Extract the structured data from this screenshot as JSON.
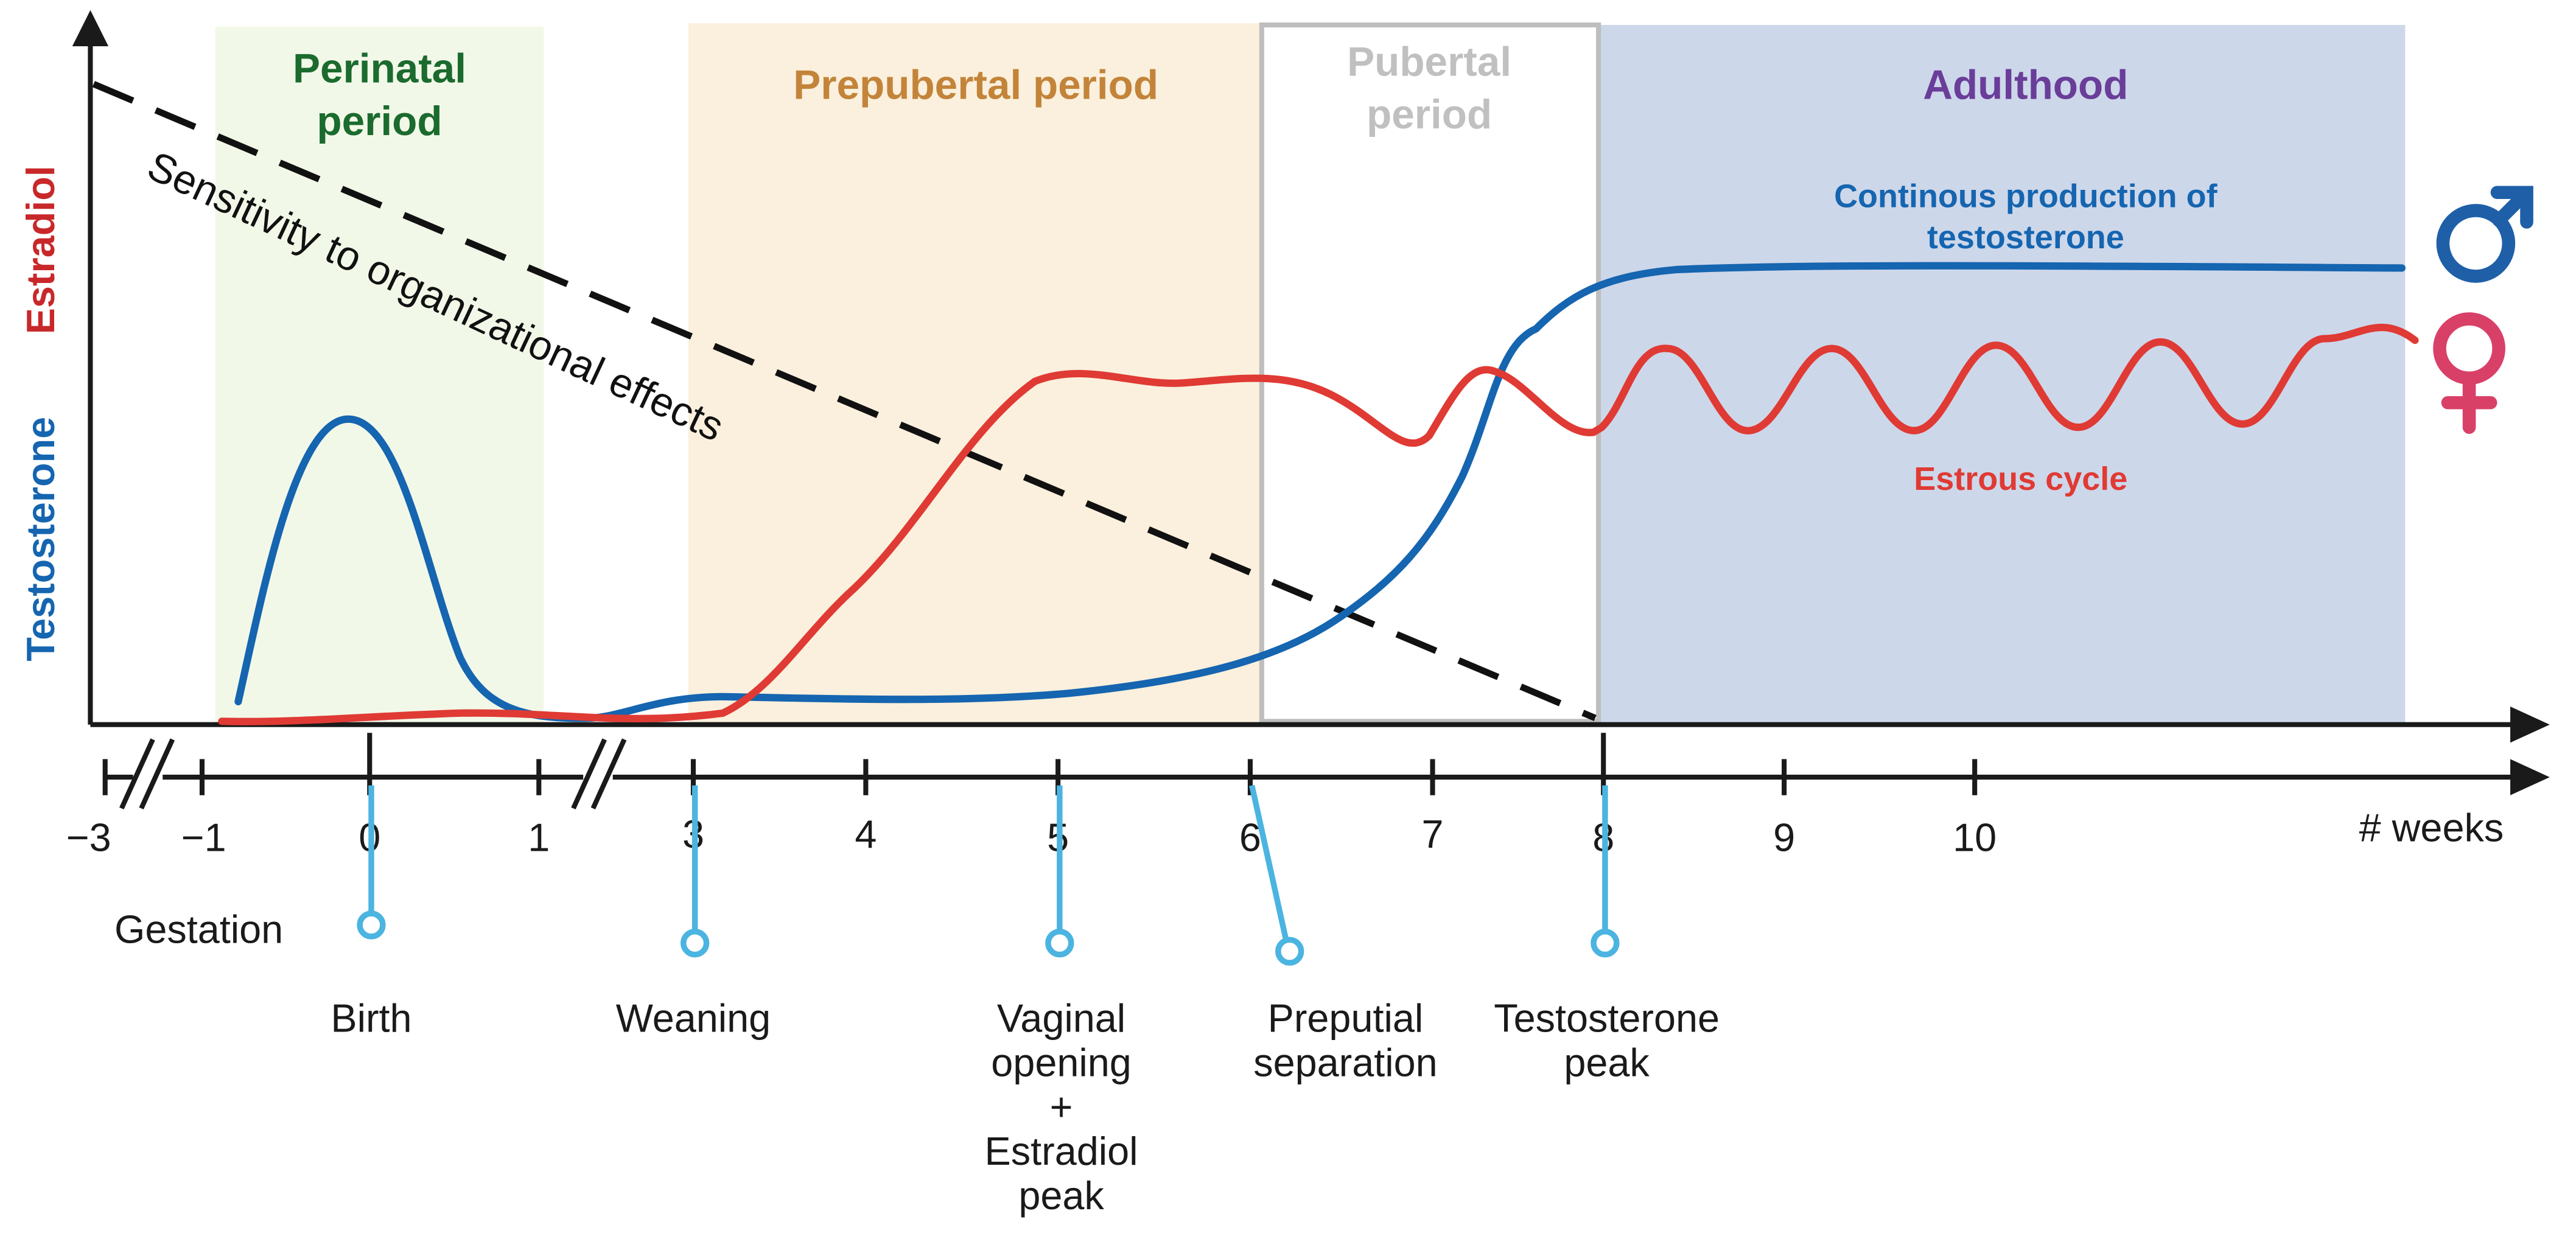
{
  "periods": {
    "perinatal": {
      "line1": "Perinatal",
      "line2": "period",
      "color": "#1B6B2E",
      "fill": "#F2F8E8"
    },
    "prepubertal": {
      "label": "Prepubertal period",
      "color": "#C3843A",
      "fill": "#FAF0DD"
    },
    "pubertal": {
      "line1": "Pubertal",
      "line2": "period",
      "color": "#C0C0C0"
    },
    "adulthood": {
      "label": "Adulthood",
      "color": "#6A3D99",
      "fill": "#CDD7EA"
    }
  },
  "y_axis": {
    "estradiol": "Estradiol",
    "testosterone": "Testosterone"
  },
  "annotations": {
    "sensitivity": "Sensitivity to organizational effects",
    "male_line1": "Continous production of",
    "male_line2": "testosterone",
    "estrous": "Estrous cycle"
  },
  "timeline": {
    "unit_label": "# weeks",
    "ticks": [
      "−3",
      "−1",
      "0",
      "1",
      "3",
      "4",
      "5",
      "6",
      "7",
      "8",
      "9",
      "10"
    ],
    "gestation": "Gestation"
  },
  "events": {
    "birth": [
      "Birth"
    ],
    "weaning": [
      "Weaning"
    ],
    "vaginal": [
      "Vaginal",
      "opening",
      "+",
      "Estradiol",
      "peak"
    ],
    "preputial": [
      "Preputial",
      "separation"
    ],
    "testosterone": [
      "Testosterone",
      "peak"
    ]
  },
  "symbols": {
    "male": "male-symbol",
    "female": "female-symbol"
  },
  "colors": {
    "testosterone": "#1565B0",
    "estradiol": "#E03A34",
    "event_marker": "#4BB4E0",
    "male_symbol": "#1F5FA8",
    "female_symbol": "#D94068",
    "axis": "#1A1A1A"
  }
}
